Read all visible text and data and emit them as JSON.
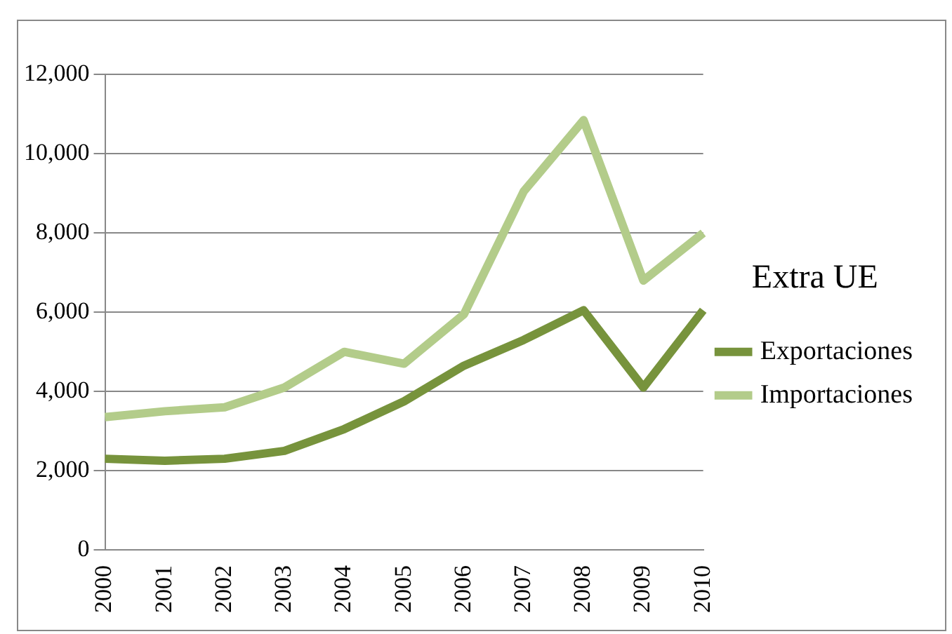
{
  "chart_data": {
    "type": "line",
    "legend_title": "Extra UE",
    "categories": [
      "2000",
      "2001",
      "2002",
      "2003",
      "2004",
      "2005",
      "2006",
      "2007",
      "2008",
      "2009",
      "2010"
    ],
    "series": [
      {
        "name": "Exportaciones",
        "color": "#77933c",
        "values": [
          2300,
          2250,
          2300,
          2500,
          3050,
          3750,
          4650,
          5300,
          6050,
          4100,
          6050
        ]
      },
      {
        "name": "Importaciones",
        "color": "#b3cc8a",
        "values": [
          3350,
          3500,
          3600,
          4100,
          5000,
          4700,
          5950,
          9050,
          10850,
          6800,
          8000
        ]
      }
    ],
    "ylim": [
      0,
      12000
    ],
    "yticks": [
      {
        "value": 0,
        "label": "0"
      },
      {
        "value": 2000,
        "label": "2,000"
      },
      {
        "value": 4000,
        "label": "4,000"
      },
      {
        "value": 6000,
        "label": "6,000"
      },
      {
        "value": 8000,
        "label": "8,000"
      },
      {
        "value": 10000,
        "label": "10,000"
      },
      {
        "value": 12000,
        "label": "12,000"
      }
    ],
    "grid": "y",
    "legend": "right",
    "marker": "none"
  }
}
